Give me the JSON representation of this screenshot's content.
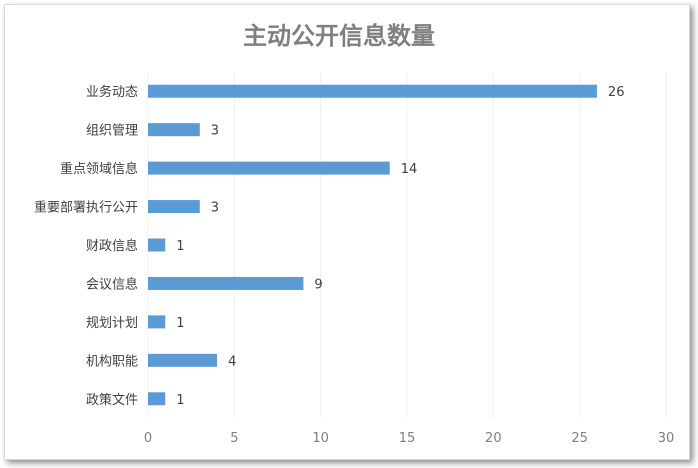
{
  "chart_data": {
    "type": "bar",
    "orientation": "horizontal",
    "title": "主动公开信息数量",
    "categories": [
      "业务动态",
      "组织管理",
      "重点领域信息",
      "重要部署执行公开",
      "财政信息",
      "会议信息",
      "规划计划",
      "机构职能",
      "政策文件"
    ],
    "values": [
      26,
      3,
      14,
      3,
      1,
      9,
      1,
      4,
      1
    ],
    "xlim": [
      0,
      30
    ],
    "xticks": [
      0,
      5,
      10,
      15,
      20,
      25,
      30
    ],
    "xlabel": "",
    "ylabel": "",
    "grid": true,
    "legend": "none",
    "bar_color": "#5b9bd5"
  }
}
